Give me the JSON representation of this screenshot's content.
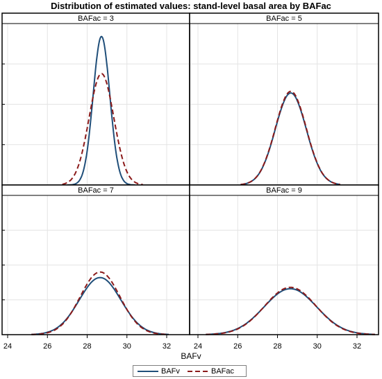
{
  "chart_data": {
    "type": "line",
    "title": "Distribution of estimated values: stand-level basal area by BAFac",
    "xlabel": "BAFv",
    "ylabel": "",
    "xlim": [
      24,
      33
    ],
    "xticks": [
      24,
      26,
      28,
      30,
      32
    ],
    "grid": true,
    "legend_position": "bottom",
    "series_styles": [
      {
        "name": "BAFv",
        "color": "#1f4e79",
        "dash": "solid"
      },
      {
        "name": "BAFac",
        "color": "#8b1a1a",
        "dash": "dashed"
      }
    ],
    "panels": [
      {
        "label": "BAFac = 3",
        "ylim": [
          0,
          1.0
        ],
        "curves": [
          {
            "series": "BAFv",
            "mean": 28.72,
            "sd": 0.42,
            "peak": 0.92,
            "x_from": 27.0,
            "x_to": 30.4
          },
          {
            "series": "BAFac",
            "mean": 28.72,
            "sd": 0.62,
            "peak": 0.69,
            "x_from": 26.75,
            "x_to": 30.8
          }
        ]
      },
      {
        "label": "BAFac = 5",
        "ylim": [
          0,
          1.0
        ],
        "curves": [
          {
            "series": "BAFv",
            "mean": 28.67,
            "sd": 0.78,
            "peak": 0.57,
            "x_from": 26.15,
            "x_to": 31.15
          },
          {
            "series": "BAFac",
            "mean": 28.67,
            "sd": 0.78,
            "peak": 0.58,
            "x_from": 26.15,
            "x_to": 31.15
          }
        ]
      },
      {
        "label": "BAFac = 7",
        "ylim": [
          0,
          1.0
        ],
        "curves": [
          {
            "series": "BAFv",
            "mean": 28.65,
            "sd": 1.05,
            "peak": 0.41,
            "x_from": 25.2,
            "x_to": 32.1
          },
          {
            "series": "BAFac",
            "mean": 28.65,
            "sd": 1.0,
            "peak": 0.45,
            "x_from": 25.2,
            "x_to": 32.1
          }
        ]
      },
      {
        "label": "BAFac = 9",
        "ylim": [
          0,
          1.0
        ],
        "curves": [
          {
            "series": "BAFv",
            "mean": 28.65,
            "sd": 1.32,
            "peak": 0.33,
            "x_from": 24.4,
            "x_to": 32.9
          },
          {
            "series": "BAFac",
            "mean": 28.65,
            "sd": 1.29,
            "peak": 0.34,
            "x_from": 24.4,
            "x_to": 32.9
          }
        ]
      }
    ]
  },
  "legend": {
    "items": [
      "BAFv",
      "BAFac"
    ]
  }
}
